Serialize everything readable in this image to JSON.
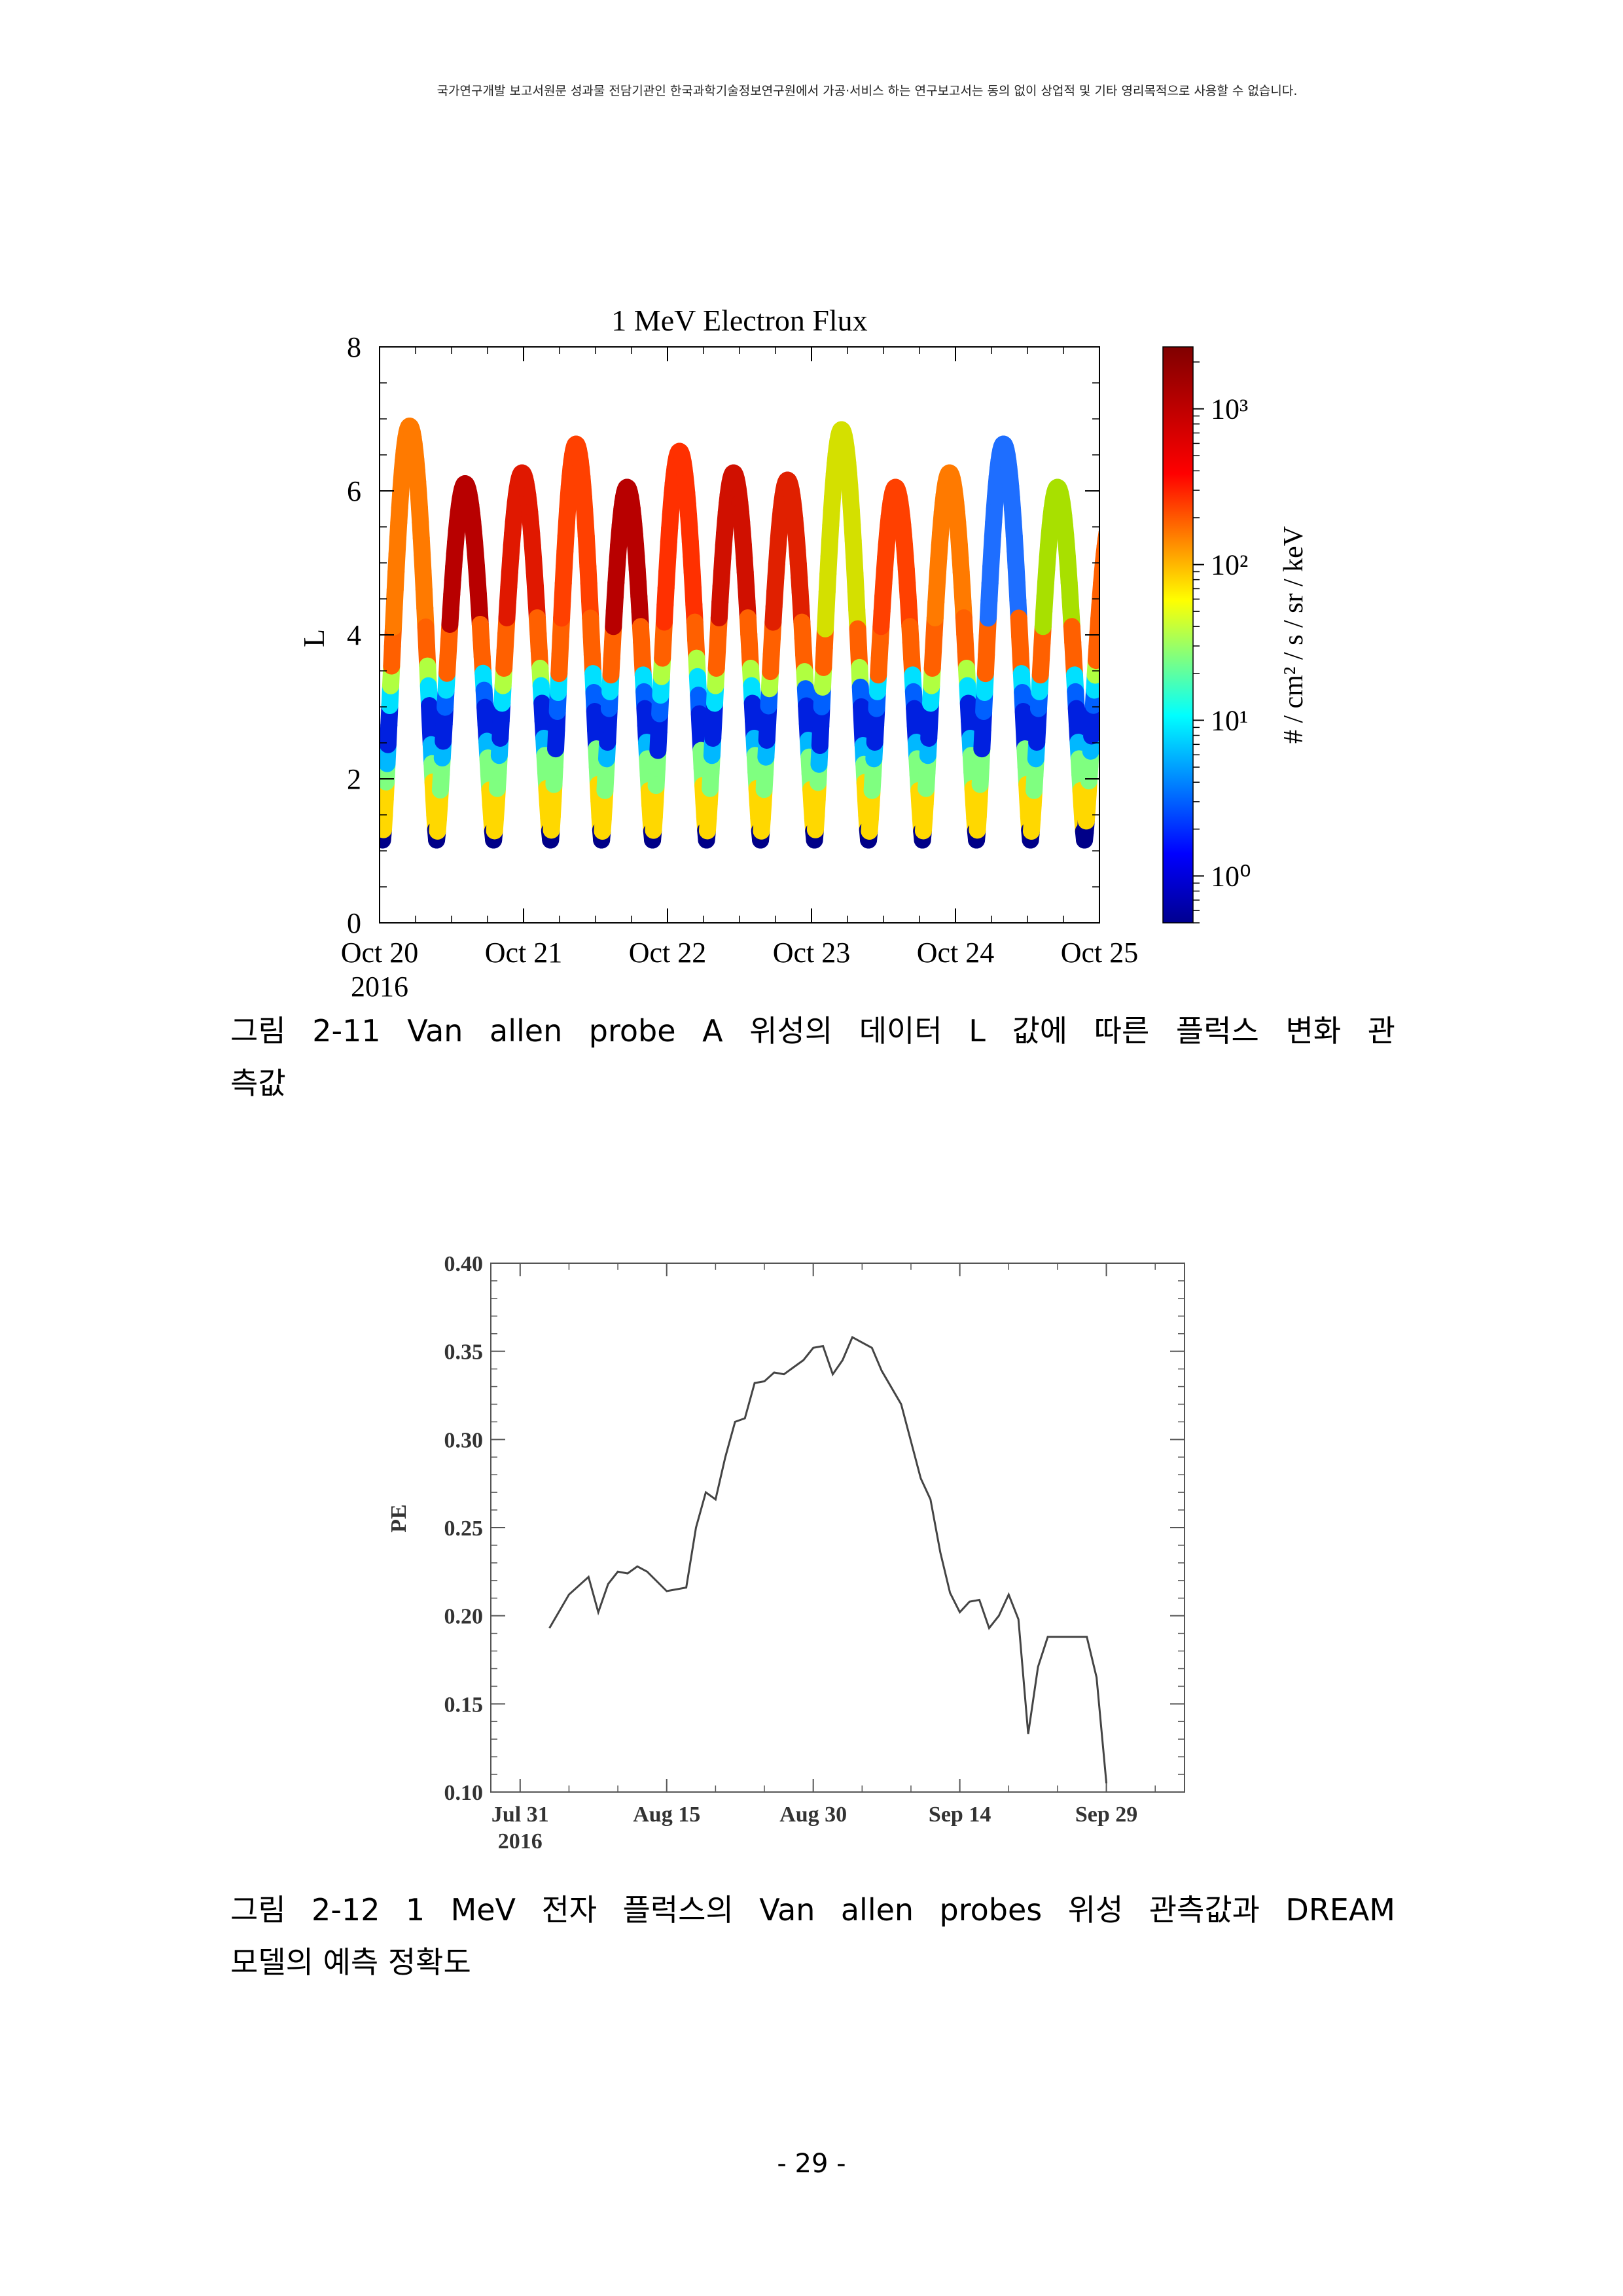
{
  "header": {
    "notice": "국가연구개발 보고서원문 성과물 전담기관인 한국과학기술정보연구원에서 가공·서비스 하는 연구보고서는 동의 없이 상업적 및 기타 영리목적으로 사용할 수 없습니다."
  },
  "figure1": {
    "caption_line1": "그림 2-11 Van allen probe A 위성의 데이터 L 값에 따른 플럭스 변화 관",
    "caption_line2": "측값",
    "chart_data": {
      "type": "scatter",
      "title": "1 MeV Electron Flux",
      "xlabel": "",
      "ylabel": "L",
      "x_ticks": [
        "Oct 20",
        "Oct 21",
        "Oct 22",
        "Oct 23",
        "Oct 24",
        "Oct 25"
      ],
      "x_year": "2016",
      "xlim": [
        "2016-10-20",
        "2016-10-25"
      ],
      "ylim": [
        0,
        8
      ],
      "y_ticks": [
        0,
        2,
        4,
        6,
        8
      ],
      "colorbar": {
        "label": "# / cm² / s / sr / keV",
        "scale": "log",
        "ticks": [
          "10⁰",
          "10¹",
          "10²",
          "10³"
        ],
        "range": [
          0.5,
          2500
        ],
        "colormap": "jet"
      },
      "orbit_apogees": [
        {
          "time": "2016-10-20T05:00",
          "L": 6.9,
          "peak_color": "#ff7a00"
        },
        {
          "time": "2016-10-20T14:00",
          "L": 6.1,
          "peak_color": "#b80000"
        },
        {
          "time": "2016-10-21T00:00",
          "L": 6.25,
          "peak_color": "#e01800"
        },
        {
          "time": "2016-10-21T09:00",
          "L": 6.65,
          "peak_color": "#ff4000"
        },
        {
          "time": "2016-10-21T17:00",
          "L": 6.05,
          "peak_color": "#b80000"
        },
        {
          "time": "2016-10-22T02:00",
          "L": 6.55,
          "peak_color": "#ff3000"
        },
        {
          "time": "2016-10-22T11:00",
          "L": 6.25,
          "peak_color": "#d01000"
        },
        {
          "time": "2016-10-22T20:00",
          "L": 6.15,
          "peak_color": "#e02000"
        },
        {
          "time": "2016-10-23T05:00",
          "L": 6.85,
          "peak_color": "#d4e000"
        },
        {
          "time": "2016-10-23T14:00",
          "L": 6.05,
          "peak_color": "#ff4000"
        },
        {
          "time": "2016-10-23T23:00",
          "L": 6.25,
          "peak_color": "#ff7a00"
        },
        {
          "time": "2016-10-24T08:00",
          "L": 6.65,
          "peak_color": "#1e6eff"
        },
        {
          "time": "2016-10-24T17:00",
          "L": 6.05,
          "peak_color": "#a8e000"
        }
      ],
      "perigee_L": 1.15,
      "slot_L": [
        2.5,
        3.3
      ]
    }
  },
  "figure2": {
    "caption_line1": "그림 2-12 1 MeV 전자 플럭스의 Van allen probes 위성 관측값과 DREAM",
    "caption_line2": "모델의 예측 정확도",
    "chart_data": {
      "type": "line",
      "title": "",
      "xlabel": "",
      "ylabel": "PE",
      "ylim": [
        0.1,
        0.4
      ],
      "y_ticks": [
        "0.10",
        "0.15",
        "0.20",
        "0.25",
        "0.30",
        "0.35",
        "0.40"
      ],
      "x_ticks": [
        "Jul 31",
        "Aug 15",
        "Aug 30",
        "Sep 14",
        "Sep 29"
      ],
      "x_year": "2016",
      "xlim": [
        "2016-07-28",
        "2016-10-07"
      ],
      "series": [
        {
          "x": [
            "2016-08-03",
            "2016-08-05",
            "2016-08-07",
            "2016-08-08",
            "2016-08-09",
            "2016-08-10",
            "2016-08-11",
            "2016-08-12",
            "2016-08-13",
            "2016-08-15",
            "2016-08-17",
            "2016-08-18",
            "2016-08-19",
            "2016-08-20",
            "2016-08-21",
            "2016-08-22",
            "2016-08-23",
            "2016-08-24",
            "2016-08-25",
            "2016-08-26",
            "2016-08-27",
            "2016-08-28",
            "2016-08-29",
            "2016-08-30",
            "2016-08-31",
            "2016-09-01",
            "2016-09-02",
            "2016-09-03",
            "2016-09-04",
            "2016-09-05",
            "2016-09-06",
            "2016-09-08",
            "2016-09-10",
            "2016-09-11",
            "2016-09-12",
            "2016-09-13",
            "2016-09-14",
            "2016-09-15",
            "2016-09-16",
            "2016-09-17",
            "2016-09-18",
            "2016-09-19",
            "2016-09-20",
            "2016-09-21",
            "2016-09-22",
            "2016-09-23",
            "2016-09-24",
            "2016-09-25",
            "2016-09-26",
            "2016-09-27",
            "2016-09-28",
            "2016-09-29"
          ],
          "values": [
            0.193,
            0.212,
            0.222,
            0.202,
            0.218,
            0.225,
            0.224,
            0.228,
            0.225,
            0.214,
            0.216,
            0.25,
            0.27,
            0.266,
            0.29,
            0.31,
            0.312,
            0.332,
            0.333,
            0.338,
            0.337,
            0.341,
            0.345,
            0.352,
            0.353,
            0.337,
            0.345,
            0.358,
            0.355,
            0.352,
            0.339,
            0.32,
            0.278,
            0.266,
            0.236,
            0.213,
            0.202,
            0.208,
            0.209,
            0.193,
            0.2,
            0.212,
            0.198,
            0.133,
            0.171,
            0.188,
            0.188,
            0.188,
            0.188,
            0.188,
            0.165,
            0.105
          ]
        }
      ]
    }
  },
  "page_number": "- 29 -"
}
